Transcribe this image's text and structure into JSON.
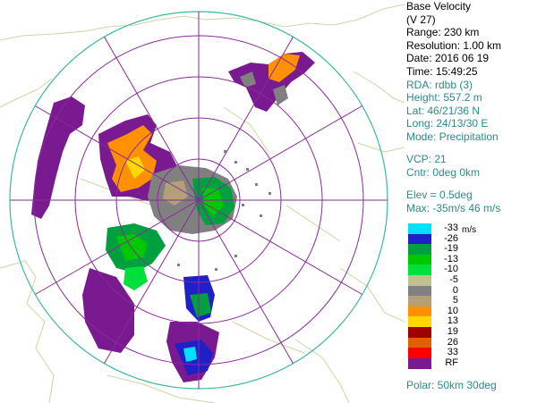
{
  "info": {
    "product": "Base Velocity",
    "product_code": "(V 27)",
    "range": "Range: 230 km",
    "resolution": "Resolution: 1.00 km",
    "date": "Date: 2016 06 19",
    "time": "Time: 15:49:25",
    "rda": "RDA: rdbb (3)",
    "height": "Height: 557.2 m",
    "lat": "Lat:  46/21/36 N",
    "long": "Long:  24/13/30 E",
    "mode": "Mode: Precipitation",
    "vcp": "VCP: 21",
    "cntr": "Cntr:    0deg    0km",
    "elev": "Elev = 0.5deg",
    "max": "Max:  -35m/s  46 m/s",
    "polar": "Polar:   50km 30deg"
  },
  "legend": {
    "unit": "m/s",
    "entries": [
      {
        "label": "-33",
        "color": "#00e0ff"
      },
      {
        "label": "-26",
        "color": "#2020c8"
      },
      {
        "label": "-19",
        "color": "#00a040"
      },
      {
        "label": "-13",
        "color": "#00c800"
      },
      {
        "label": "-10",
        "color": "#00e03c"
      },
      {
        "label": "-5",
        "color": "#c0c090"
      },
      {
        "label": "0",
        "color": "#808080"
      },
      {
        "label": "5",
        "color": "#b4a078"
      },
      {
        "label": "10",
        "color": "#ff9000"
      },
      {
        "label": "13",
        "color": "#ffd800"
      },
      {
        "label": "19",
        "color": "#a00000"
      },
      {
        "label": "26",
        "color": "#e06000"
      },
      {
        "label": "33",
        "color": "#ff0000"
      },
      {
        "label": "RF",
        "color": "#7a1a90"
      }
    ]
  }
}
